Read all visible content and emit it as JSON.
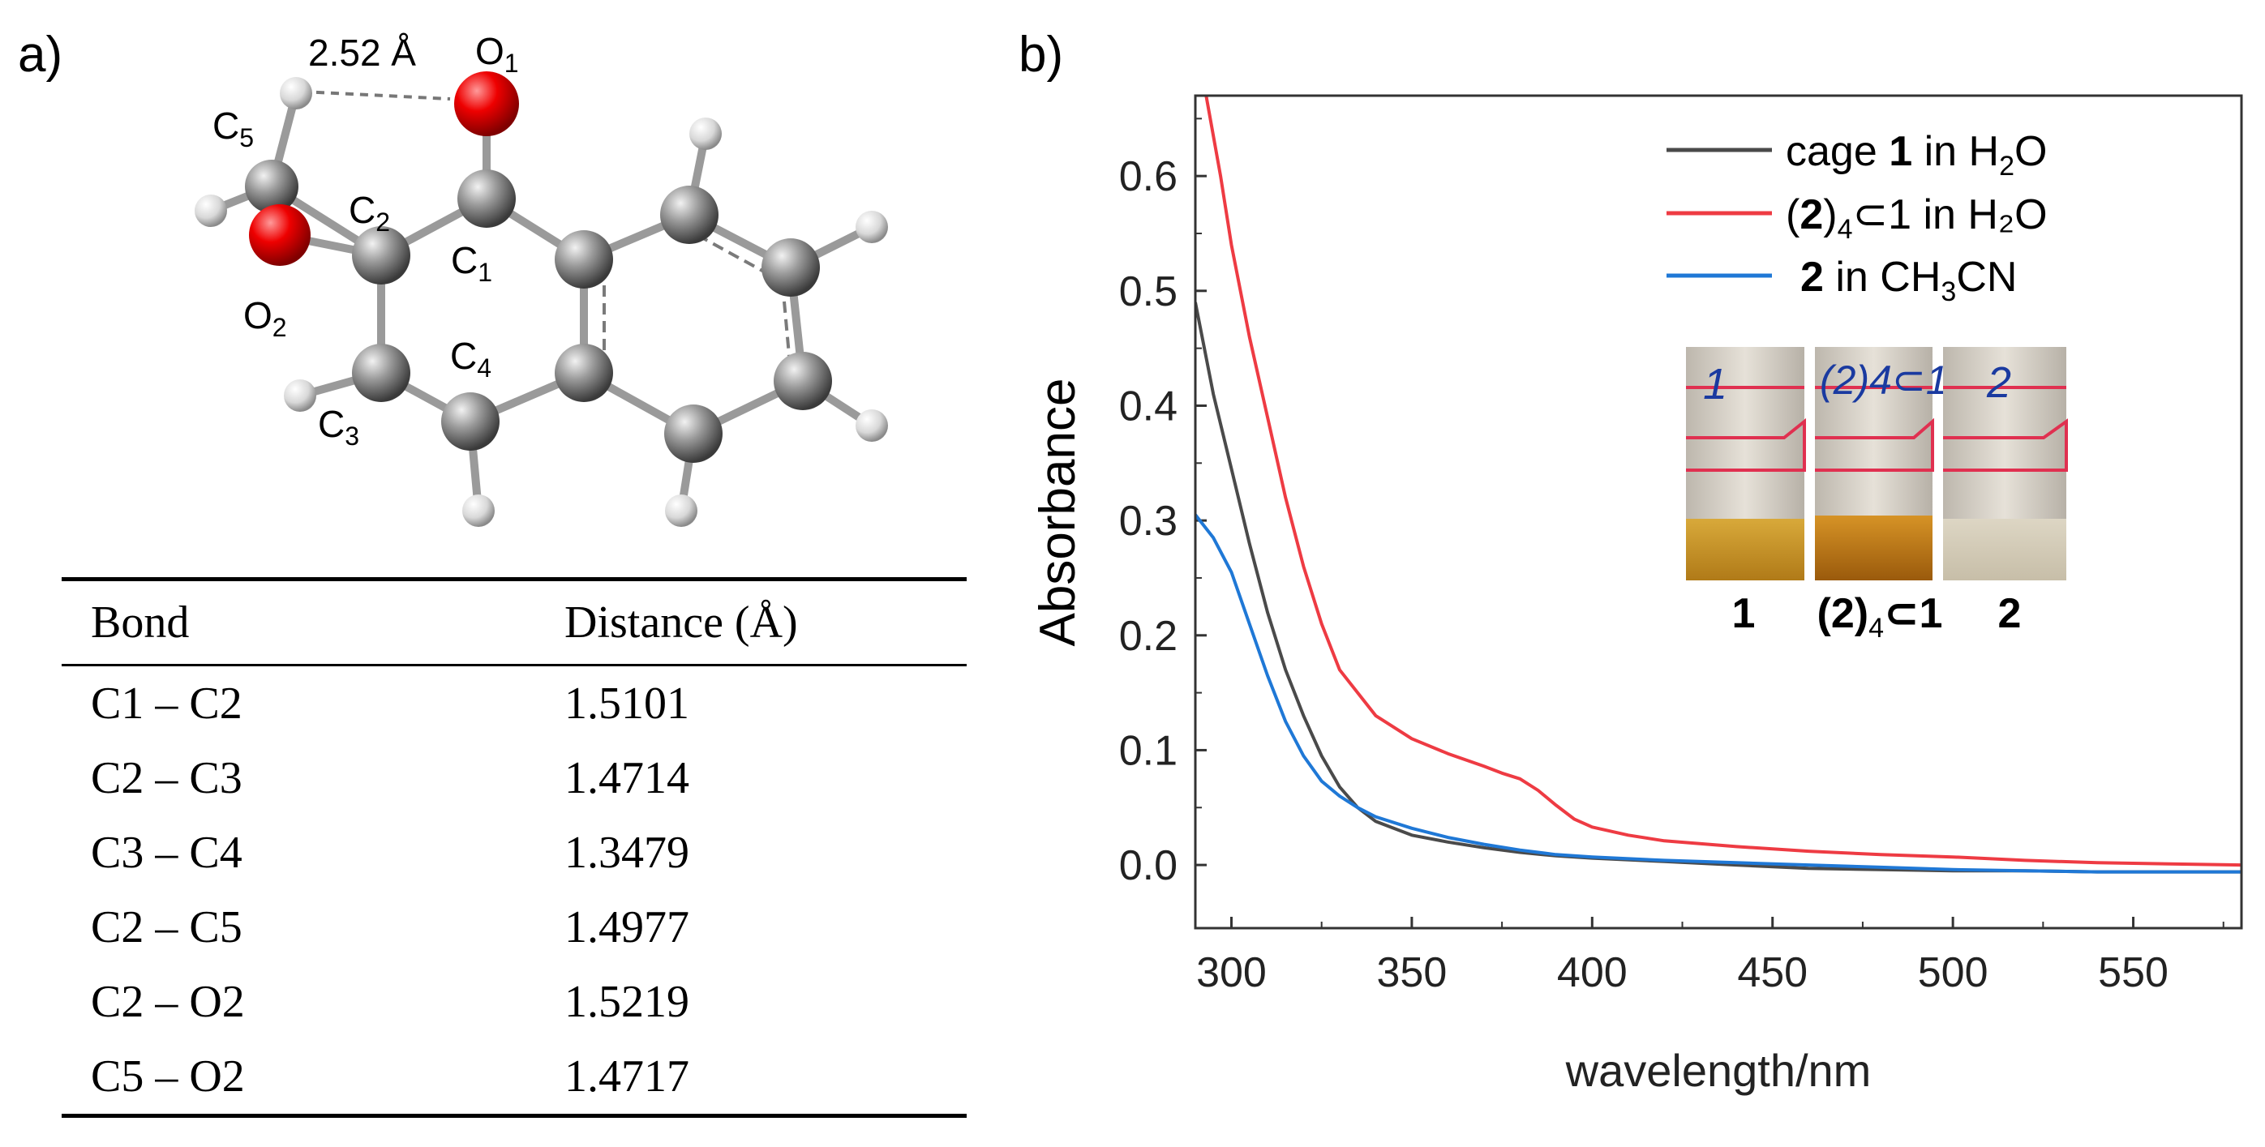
{
  "panel_a": {
    "label": "a)",
    "molecule": {
      "distance_label": "2.52 Å",
      "atoms": [
        {
          "el": "O",
          "sub": "1"
        },
        {
          "el": "C",
          "sub": "5"
        },
        {
          "el": "C",
          "sub": "2"
        },
        {
          "el": "C",
          "sub": "1"
        },
        {
          "el": "O",
          "sub": "2"
        },
        {
          "el": "C",
          "sub": "4"
        },
        {
          "el": "C",
          "sub": "3"
        }
      ]
    },
    "table": {
      "headers": [
        "Bond",
        "Distance (Å)"
      ],
      "rows": [
        [
          "C1 – C2",
          "1.5101"
        ],
        [
          "C2 – C3",
          "1.4714"
        ],
        [
          "C3 – C4",
          "1.3479"
        ],
        [
          "C2 – C5",
          "1.4977"
        ],
        [
          "C2 – O2",
          "1.5219"
        ],
        [
          "C5 – O2",
          "1.4717"
        ]
      ]
    }
  },
  "panel_b": {
    "label": "b)",
    "inset": {
      "vial_labels": [
        "1",
        "(2)4⊂1",
        "2"
      ],
      "vial_handwriting": [
        "1",
        "(2)4⊂1",
        "2"
      ],
      "captions": [
        {
          "main": "1"
        },
        {
          "main": "(2)",
          "sub": "4",
          "tail": "⊂1"
        },
        {
          "main": "2"
        }
      ]
    }
  },
  "chart_data": {
    "type": "line",
    "xlabel": "wavelength/nm",
    "ylabel": "Absorbance",
    "xlim": [
      290,
      580
    ],
    "ylim": [
      -0.055,
      0.67
    ],
    "xticks": [
      300,
      350,
      400,
      450,
      500,
      550
    ],
    "yticks": [
      0.0,
      0.1,
      0.2,
      0.3,
      0.4,
      0.5,
      0.6
    ],
    "ytick_labels": [
      "0.0",
      "0.1",
      "0.2",
      "0.3",
      "0.4",
      "0.5",
      "0.6"
    ],
    "legend_position": "top-right",
    "series": [
      {
        "name": "cage 1 in H2O",
        "legend": {
          "pre": "cage ",
          "bold": "1",
          "mid": " in H",
          "sub": "2",
          "post": "O"
        },
        "color": "#4a4a4a",
        "x": [
          290,
          295,
          300,
          305,
          310,
          315,
          320,
          325,
          330,
          335,
          340,
          350,
          360,
          370,
          380,
          390,
          400,
          420,
          440,
          460,
          480,
          500,
          520,
          540,
          560,
          580
        ],
        "y": [
          0.49,
          0.41,
          0.345,
          0.28,
          0.22,
          0.17,
          0.13,
          0.095,
          0.068,
          0.05,
          0.038,
          0.026,
          0.02,
          0.015,
          0.011,
          0.008,
          0.006,
          0.003,
          0.0,
          -0.003,
          -0.004,
          -0.005,
          -0.005,
          -0.006,
          -0.006,
          -0.006
        ]
      },
      {
        "name": "(2)4⊂1 in H2O",
        "legend": {
          "pre": "(",
          "bold": "2",
          "mid": ")",
          "sub": "4",
          "post": "⊂1 in H₂O"
        },
        "color": "#ee3b43",
        "x": [
          290,
          293,
          297,
          300,
          305,
          310,
          315,
          320,
          325,
          330,
          340,
          350,
          360,
          370,
          375,
          380,
          385,
          390,
          395,
          400,
          410,
          420,
          440,
          460,
          480,
          500,
          520,
          540,
          560,
          580
        ],
        "y": [
          0.68,
          0.67,
          0.6,
          0.54,
          0.46,
          0.39,
          0.32,
          0.26,
          0.21,
          0.17,
          0.13,
          0.11,
          0.097,
          0.086,
          0.08,
          0.075,
          0.065,
          0.052,
          0.04,
          0.033,
          0.026,
          0.021,
          0.016,
          0.012,
          0.009,
          0.007,
          0.004,
          0.002,
          0.001,
          0.0
        ]
      },
      {
        "name": "2 in CH3CN",
        "legend": {
          "pre": "",
          "bold": "2",
          "mid": " in CH",
          "sub": "3",
          "post": "CN"
        },
        "color": "#1f78d6",
        "x": [
          290,
          295,
          300,
          305,
          310,
          315,
          320,
          325,
          330,
          335,
          340,
          350,
          360,
          370,
          380,
          390,
          400,
          420,
          440,
          460,
          480,
          500,
          520,
          540,
          560,
          580
        ],
        "y": [
          0.305,
          0.285,
          0.255,
          0.21,
          0.165,
          0.125,
          0.095,
          0.073,
          0.06,
          0.05,
          0.042,
          0.032,
          0.024,
          0.018,
          0.013,
          0.009,
          0.007,
          0.004,
          0.002,
          0.0,
          -0.002,
          -0.004,
          -0.005,
          -0.006,
          -0.006,
          -0.006
        ]
      }
    ]
  }
}
